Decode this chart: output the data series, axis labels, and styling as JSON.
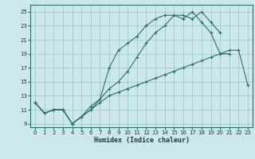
{
  "xlabel": "Humidex (Indice chaleur)",
  "bg_color": "#cde8eb",
  "grid_color": "#9ac4c8",
  "line_color": "#2a7070",
  "xlim": [
    -0.5,
    23.5
  ],
  "ylim": [
    8.5,
    26.0
  ],
  "xticks": [
    0,
    1,
    2,
    3,
    4,
    5,
    6,
    7,
    8,
    9,
    10,
    11,
    12,
    13,
    14,
    15,
    16,
    17,
    18,
    19,
    20,
    21,
    22,
    23
  ],
  "yticks": [
    9,
    11,
    13,
    15,
    17,
    19,
    21,
    23,
    25
  ],
  "curve1_x": [
    0,
    1,
    2,
    3,
    4,
    5,
    6,
    7,
    8,
    9,
    10,
    11,
    12,
    13,
    14,
    15,
    16,
    17,
    18,
    19,
    20,
    21,
    22,
    23
  ],
  "curve1_y": [
    12.0,
    10.5,
    11.0,
    11.0,
    9.0,
    10.0,
    11.0,
    12.0,
    13.0,
    13.5,
    14.0,
    14.5,
    15.0,
    15.5,
    16.0,
    16.5,
    17.0,
    17.5,
    18.0,
    18.5,
    19.0,
    19.5,
    19.5,
    14.5
  ],
  "curve2_x": [
    0,
    1,
    2,
    3,
    4,
    5,
    6,
    7,
    8,
    9,
    10,
    11,
    12,
    13,
    14,
    15,
    16,
    17,
    18,
    19,
    20,
    21
  ],
  "curve2_y": [
    12.0,
    10.5,
    11.0,
    11.0,
    9.0,
    10.0,
    11.5,
    12.5,
    17.0,
    19.5,
    20.5,
    21.5,
    23.0,
    24.0,
    24.5,
    24.5,
    24.0,
    25.0,
    23.5,
    22.0,
    19.0,
    19.0
  ],
  "curve3_x": [
    0,
    1,
    2,
    3,
    4,
    5,
    6,
    7,
    8,
    9,
    10,
    11,
    12,
    13,
    14,
    15,
    16,
    17,
    18,
    19,
    20
  ],
  "curve3_y": [
    12.0,
    10.5,
    11.0,
    11.0,
    9.0,
    10.0,
    11.0,
    12.5,
    14.0,
    15.0,
    16.5,
    18.5,
    20.5,
    22.0,
    23.0,
    24.5,
    24.5,
    24.0,
    25.0,
    23.5,
    22.0
  ]
}
